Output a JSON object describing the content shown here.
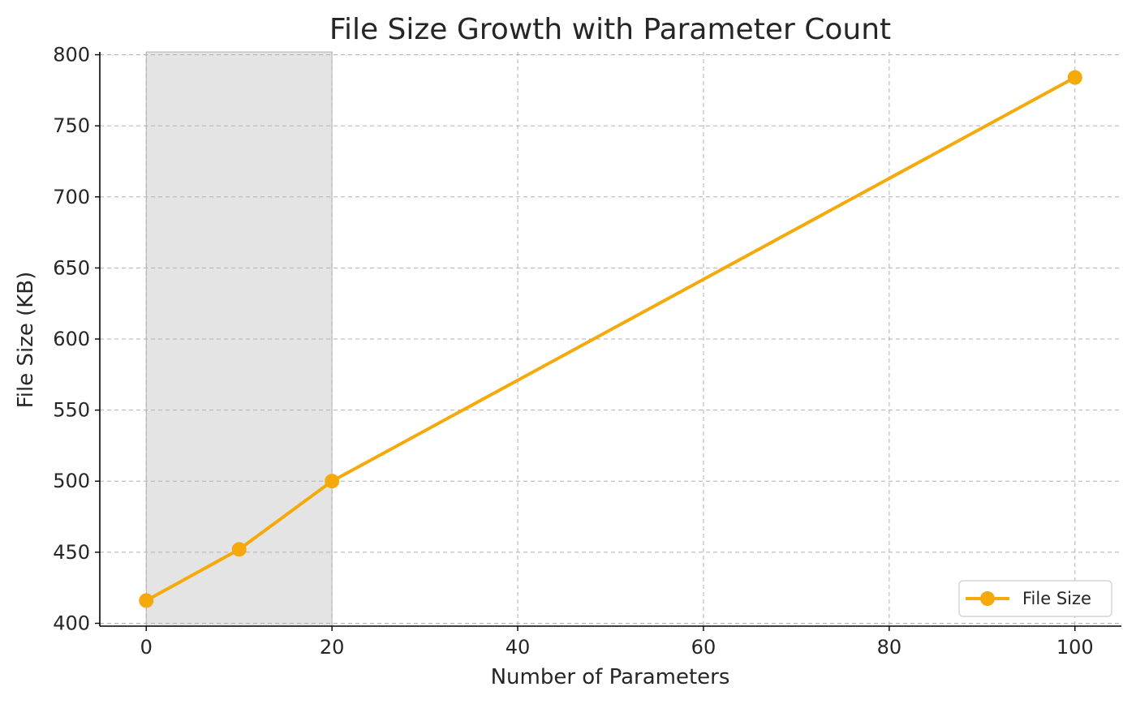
{
  "chart_data": {
    "type": "line",
    "title": "File Size Growth with Parameter Count",
    "xlabel": "Number of Parameters",
    "ylabel": "File Size (KB)",
    "xlim": [
      -5,
      105
    ],
    "ylim": [
      398,
      802
    ],
    "xticks": [
      0,
      20,
      40,
      60,
      80,
      100
    ],
    "yticks": [
      400,
      450,
      500,
      550,
      600,
      650,
      700,
      750,
      800
    ],
    "grid": true,
    "legend_position": "lower-right",
    "shaded_region": {
      "x_start": 0,
      "x_end": 20,
      "color": "#e4e4e4"
    },
    "series": [
      {
        "name": "File Size",
        "color": "#f5a90a",
        "marker": "circle",
        "x": [
          0,
          10,
          20,
          100
        ],
        "y": [
          416,
          452,
          500,
          784
        ]
      }
    ]
  }
}
